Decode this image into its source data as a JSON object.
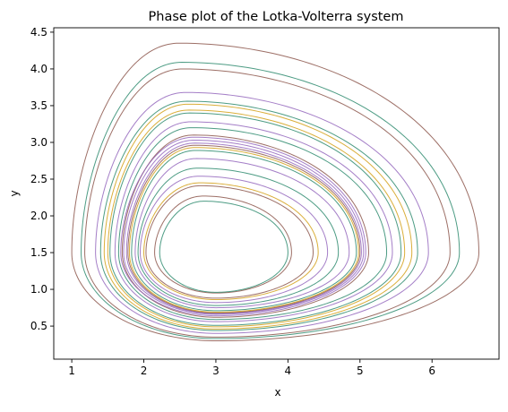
{
  "chart_data": {
    "type": "line",
    "title": "Phase plot of the Lotka-Volterra system",
    "xlabel": "x",
    "ylabel": "y",
    "xlim": [
      0.75,
      6.93
    ],
    "ylim": [
      0.05,
      4.56
    ],
    "xticks": [
      "1",
      "2",
      "3",
      "4",
      "5",
      "6"
    ],
    "xtick_values": [
      1,
      2,
      3,
      4,
      5,
      6
    ],
    "yticks": [
      "0.5",
      "1.0",
      "1.5",
      "2.0",
      "2.5",
      "3.0",
      "3.5",
      "4.0",
      "4.5"
    ],
    "ytick_values": [
      0.5,
      1.0,
      1.5,
      2.0,
      2.5,
      3.0,
      3.5,
      4.0,
      4.5
    ],
    "grid": false,
    "center": [
      3.0,
      1.5
    ],
    "orbits": [
      {
        "color": "#8c564b",
        "x_range": [
          1.0,
          6.65
        ],
        "y_range": [
          0.3,
          4.35
        ]
      },
      {
        "color": "#2e8b6e",
        "x_range": [
          1.13,
          6.38
        ],
        "y_range": [
          0.33,
          4.09
        ]
      },
      {
        "color": "#8c564b",
        "x_range": [
          1.18,
          6.25
        ],
        "y_range": [
          0.35,
          4.0
        ]
      },
      {
        "color": "#9467bd",
        "x_range": [
          1.33,
          5.95
        ],
        "y_range": [
          0.4,
          3.68
        ]
      },
      {
        "color": "#2e8b6e",
        "x_range": [
          1.4,
          5.8
        ],
        "y_range": [
          0.44,
          3.56
        ]
      },
      {
        "color": "#d4a017",
        "x_range": [
          1.45,
          5.72
        ],
        "y_range": [
          0.46,
          3.52
        ]
      },
      {
        "color": "#d4a017",
        "x_range": [
          1.5,
          5.62
        ],
        "y_range": [
          0.49,
          3.44
        ]
      },
      {
        "color": "#2e8b6e",
        "x_range": [
          1.53,
          5.57
        ],
        "y_range": [
          0.51,
          3.4
        ]
      },
      {
        "color": "#9467bd",
        "x_range": [
          1.6,
          5.45
        ],
        "y_range": [
          0.56,
          3.28
        ]
      },
      {
        "color": "#2e8b6e",
        "x_range": [
          1.65,
          5.37
        ],
        "y_range": [
          0.59,
          3.2
        ]
      },
      {
        "color": "#8c564b",
        "x_range": [
          1.7,
          5.12
        ],
        "y_range": [
          0.62,
          3.1
        ]
      },
      {
        "color": "#9467bd",
        "x_range": [
          1.68,
          5.08
        ],
        "y_range": [
          0.64,
          3.07
        ]
      },
      {
        "color": "#9467bd",
        "x_range": [
          1.72,
          5.05
        ],
        "y_range": [
          0.66,
          3.03
        ]
      },
      {
        "color": "#9467bd",
        "x_range": [
          1.76,
          5.02
        ],
        "y_range": [
          0.67,
          2.99
        ]
      },
      {
        "color": "#8c564b",
        "x_range": [
          1.78,
          5.0
        ],
        "y_range": [
          0.68,
          2.96
        ]
      },
      {
        "color": "#d4a017",
        "x_range": [
          1.8,
          4.98
        ],
        "y_range": [
          0.69,
          2.93
        ]
      },
      {
        "color": "#2e8b6e",
        "x_range": [
          1.83,
          4.95
        ],
        "y_range": [
          0.71,
          2.89
        ]
      },
      {
        "color": "#9467bd",
        "x_range": [
          1.88,
          4.85
        ],
        "y_range": [
          0.75,
          2.78
        ]
      },
      {
        "color": "#2e8b6e",
        "x_range": [
          1.92,
          4.7
        ],
        "y_range": [
          0.78,
          2.65
        ]
      },
      {
        "color": "#9467bd",
        "x_range": [
          1.95,
          4.55
        ],
        "y_range": [
          0.82,
          2.54
        ]
      },
      {
        "color": "#d4a017",
        "x_range": [
          2.0,
          4.42
        ],
        "y_range": [
          0.86,
          2.45
        ]
      },
      {
        "color": "#8c564b",
        "x_range": [
          2.03,
          4.35
        ],
        "y_range": [
          0.88,
          2.41
        ]
      },
      {
        "color": "#8c564b",
        "x_range": [
          2.15,
          4.05
        ],
        "y_range": [
          0.95,
          2.27
        ]
      },
      {
        "color": "#2e8b6e",
        "x_range": [
          2.22,
          4.0
        ],
        "y_range": [
          0.96,
          2.2
        ]
      }
    ]
  }
}
